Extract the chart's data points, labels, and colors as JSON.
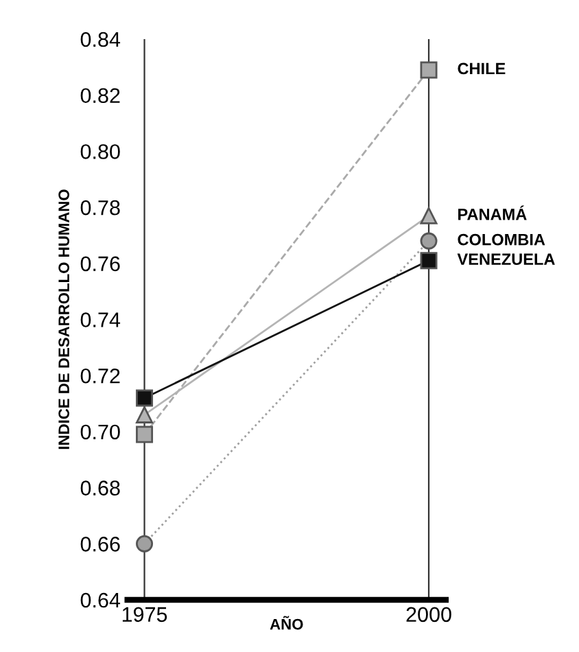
{
  "chart_data": {
    "type": "line",
    "xlabel": "AÑO",
    "ylabel": "INDICE DE DESARROLLO HUMANO",
    "categories": [
      "1975",
      "2000"
    ],
    "series": [
      {
        "name": "CHILE",
        "color": "#aaaaaa",
        "values": [
          0.699,
          0.829
        ],
        "marker": "square",
        "line_style": "dashed"
      },
      {
        "name": "PANAMÁ",
        "color": "#b4b4b4",
        "values": [
          0.706,
          0.777
        ],
        "marker": "triangle",
        "line_style": "solid"
      },
      {
        "name": "COLOMBIA",
        "color": "#a0a0a0",
        "values": [
          0.66,
          0.768
        ],
        "marker": "circle",
        "line_style": "dotted"
      },
      {
        "name": "VENEZUELA",
        "color": "#111111",
        "values": [
          0.712,
          0.761
        ],
        "marker": "square",
        "line_style": "solid"
      }
    ],
    "ylim": [
      0.64,
      0.84
    ],
    "yticks": [
      0.64,
      0.66,
      0.68,
      {
        "value": 0.7,
        "label": "0.70"
      },
      0.72,
      0.74,
      0.76,
      0.78,
      {
        "value": 0.8,
        "label": "0.80"
      },
      0.82,
      0.84
    ],
    "grid": "x",
    "legend": false
  }
}
